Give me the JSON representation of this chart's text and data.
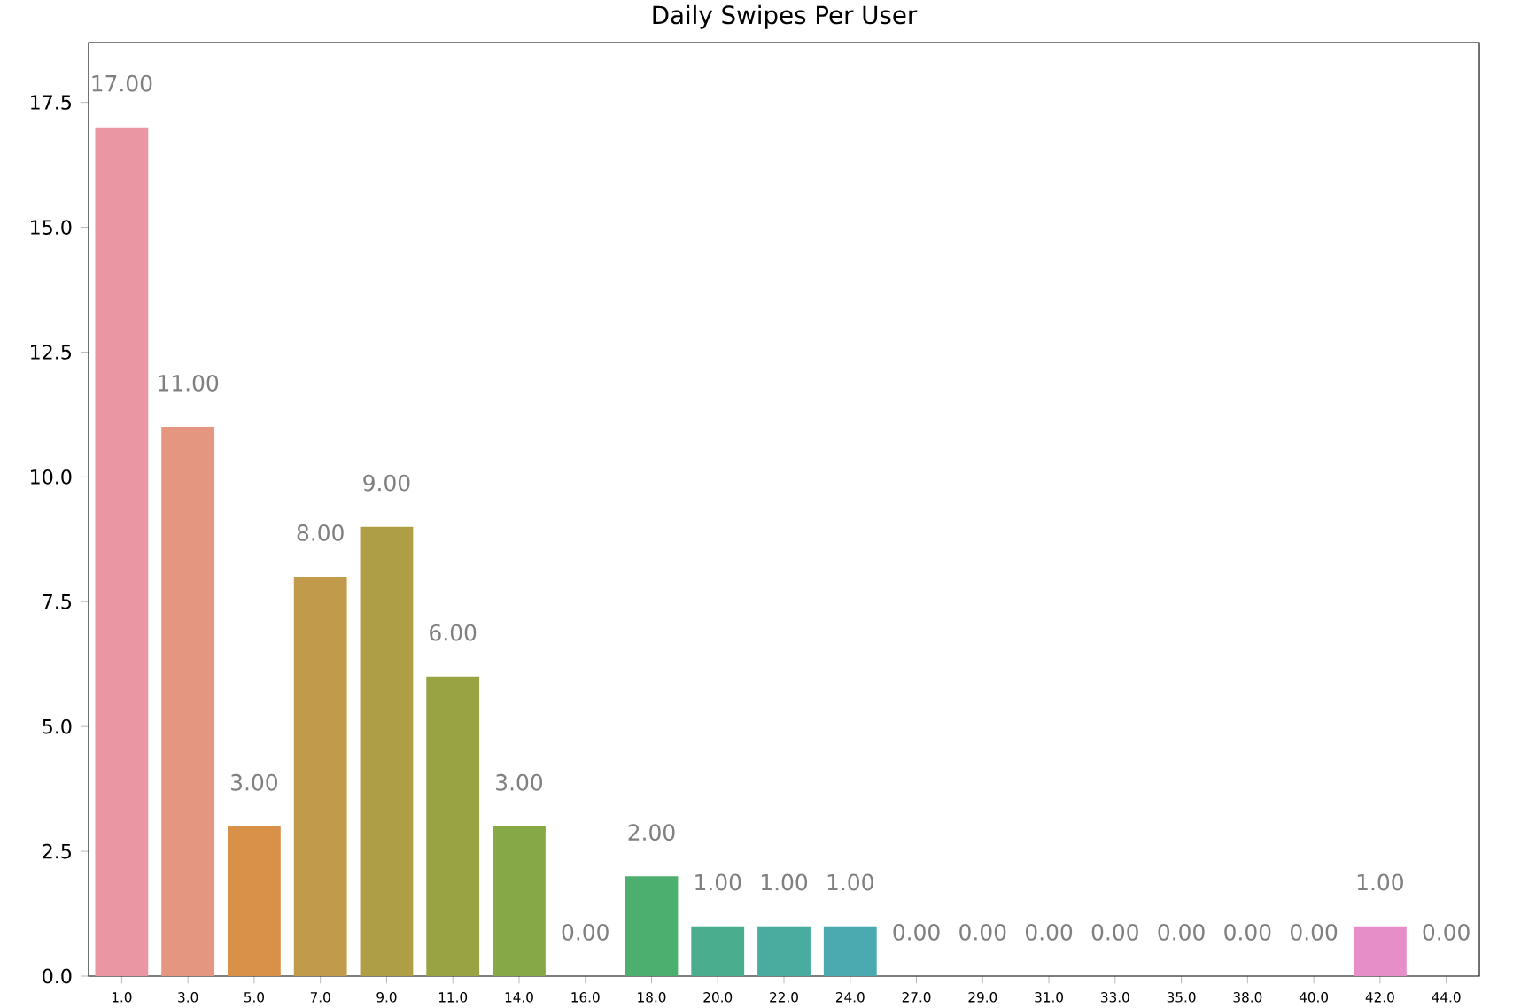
{
  "chart_data": {
    "type": "bar",
    "title": "Daily Swipes Per User",
    "categories": [
      "1.0",
      "3.0",
      "5.0",
      "7.0",
      "9.0",
      "11.0",
      "14.0",
      "16.0",
      "18.0",
      "20.0",
      "22.0",
      "24.0",
      "27.0",
      "29.0",
      "31.0",
      "33.0",
      "35.0",
      "38.0",
      "40.0",
      "42.0",
      "44.0"
    ],
    "values": [
      17,
      11,
      3,
      8,
      9,
      6,
      3,
      0,
      2,
      1,
      1,
      1,
      0,
      0,
      0,
      0,
      0,
      0,
      0,
      1,
      0
    ],
    "value_labels": [
      "17.00",
      "11.00",
      "3.00",
      "8.00",
      "9.00",
      "6.00",
      "3.00",
      "0.00",
      "2.00",
      "1.00",
      "1.00",
      "1.00",
      "0.00",
      "0.00",
      "0.00",
      "0.00",
      "0.00",
      "0.00",
      "0.00",
      "1.00",
      "0.00"
    ],
    "colors": [
      "#ea96a3",
      "#e59681",
      "#d9914a",
      "#c19a4c",
      "#ae9e46",
      "#9aa343",
      "#86a847",
      "#5eaa4c",
      "#4caf6f",
      "#4aae8e",
      "#49ac9f",
      "#4aaab0",
      "#4ca7bf",
      "#55a3cd",
      "#6c9ddc",
      "#8c95e5",
      "#a98de6",
      "#c183e0",
      "#d47dd4",
      "#e68ec8",
      "#ea8fb6"
    ],
    "ylim": [
      0,
      18.7
    ],
    "yticks": [
      {
        "value": 0,
        "label": "0.0"
      },
      2.5,
      {
        "value": 5,
        "label": "5.0"
      },
      7.5,
      {
        "value": 10,
        "label": "10.0"
      },
      12.5,
      {
        "value": 15,
        "label": "15.0"
      },
      17.5
    ],
    "grid": false
  }
}
